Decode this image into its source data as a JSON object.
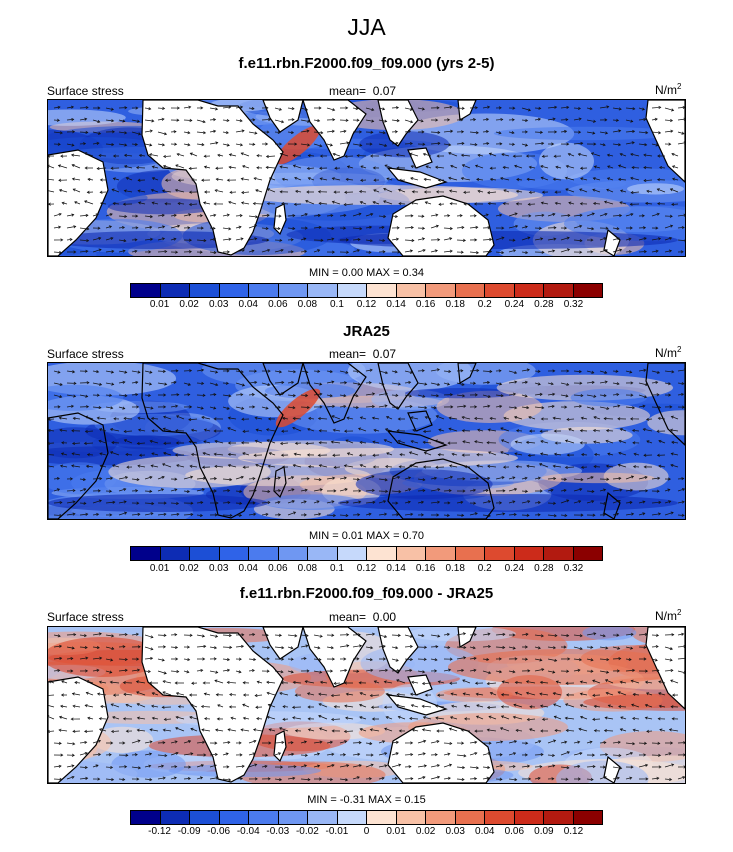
{
  "title": "JJA",
  "units_label": "N/m",
  "units_sup": "2",
  "panels": [
    {
      "title": "f.e11.rbn.F2000.f09_f09.000 (yrs 2-5)",
      "left_label": "Surface stress",
      "mean_label": "mean=",
      "mean_value": "0.07",
      "minmax": "MIN =  0.00 MAX =   0.34",
      "ticks": [
        "0.01",
        "0.02",
        "0.03",
        "0.04",
        "0.06",
        "0.08",
        "0.1",
        "0.12",
        "0.14",
        "0.16",
        "0.18",
        "0.2",
        "0.24",
        "0.28",
        "0.32"
      ]
    },
    {
      "title": "JRA25",
      "left_label": "Surface stress",
      "mean_label": "mean=",
      "mean_value": "0.07",
      "minmax": "MIN =  0.01 MAX =   0.70",
      "ticks": [
        "0.01",
        "0.02",
        "0.03",
        "0.04",
        "0.06",
        "0.08",
        "0.1",
        "0.12",
        "0.14",
        "0.16",
        "0.18",
        "0.2",
        "0.24",
        "0.28",
        "0.32"
      ]
    },
    {
      "title": "f.e11.rbn.F2000.f09_f09.000 - JRA25",
      "left_label": "Surface stress",
      "mean_label": "mean=",
      "mean_value": "0.00",
      "minmax": "MIN =  -0.31 MAX =   0.15",
      "ticks": [
        "-0.12",
        "-0.09",
        "-0.06",
        "-0.04",
        "-0.03",
        "-0.02",
        "-0.01",
        "0",
        "0.01",
        "0.02",
        "0.03",
        "0.04",
        "0.06",
        "0.09",
        "0.12"
      ]
    }
  ],
  "colors": {
    "colorbar": [
      "#00008b",
      "#0d2cb4",
      "#1c4fd6",
      "#2f63e8",
      "#4b7bee",
      "#6f97f2",
      "#99b7f6",
      "#c6d9fb",
      "#fde3d2",
      "#f8c1a6",
      "#f29a7b",
      "#e8704f",
      "#dd4a2f",
      "#cc2b1a",
      "#b21a10",
      "#8b0000"
    ],
    "ocean_base": "#3a64e0",
    "land": "#ffffff",
    "coast": "#000000",
    "arrow": "#111111"
  }
}
